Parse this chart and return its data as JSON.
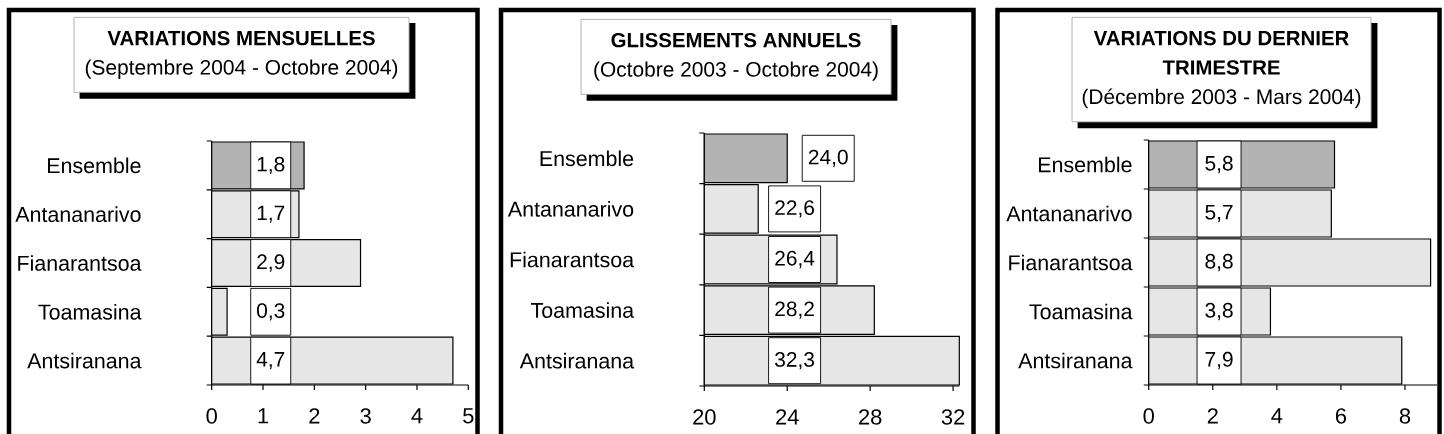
{
  "chart_data": [
    {
      "type": "bar",
      "orientation": "horizontal",
      "title": "VARIATIONS MENSUELLES",
      "subtitle": "(Septembre 2004 - Octobre 2004)",
      "categories": [
        "Ensemble",
        "Antananarivo",
        "Fianarantsoa",
        "Toamasina",
        "Antsiranana"
      ],
      "values": [
        1.8,
        1.7,
        2.9,
        0.3,
        4.7
      ],
      "value_labels": [
        "1,8",
        "1,7",
        "2,9",
        "0,3",
        "4,7"
      ],
      "colors": [
        "#b3b3b3",
        "#e6e6e6",
        "#e6e6e6",
        "#e6e6e6",
        "#e6e6e6"
      ],
      "xlim": [
        0,
        5
      ],
      "xticks": [
        0,
        1,
        2,
        3,
        4,
        5
      ]
    },
    {
      "type": "bar",
      "orientation": "horizontal",
      "title": "GLISSEMENTS ANNUELS",
      "subtitle": "(Octobre 2003 - Octobre 2004)",
      "categories": [
        "Ensemble",
        "Antananarivo",
        "Fianarantsoa",
        "Toamasina",
        "Antsiranana"
      ],
      "values": [
        24.0,
        22.6,
        26.4,
        28.2,
        32.3
      ],
      "value_labels": [
        "24,0",
        "22,6",
        "26,4",
        "28,2",
        "32,3"
      ],
      "colors": [
        "#b3b3b3",
        "#e6e6e6",
        "#e6e6e6",
        "#e6e6e6",
        "#e6e6e6"
      ],
      "xlim": [
        20,
        32.3
      ],
      "xticks": [
        20,
        24,
        28,
        32
      ]
    },
    {
      "type": "bar",
      "orientation": "horizontal",
      "title": "VARIATIONS DU DERNIER TRIMESTRE",
      "subtitle": "(Décembre 2003 - Mars 2004)",
      "categories": [
        "Ensemble",
        "Antananarivo",
        "Fianarantsoa",
        "Toamasina",
        "Antsiranana"
      ],
      "values": [
        5.8,
        5.7,
        8.8,
        3.8,
        7.9
      ],
      "value_labels": [
        "5,8",
        "5,7",
        "8,8",
        "3,8",
        "7,9"
      ],
      "colors": [
        "#b3b3b3",
        "#e6e6e6",
        "#e6e6e6",
        "#e6e6e6",
        "#e6e6e6"
      ],
      "xlim": [
        0,
        9
      ],
      "xticks": [
        0,
        2,
        4,
        6,
        8
      ]
    }
  ]
}
